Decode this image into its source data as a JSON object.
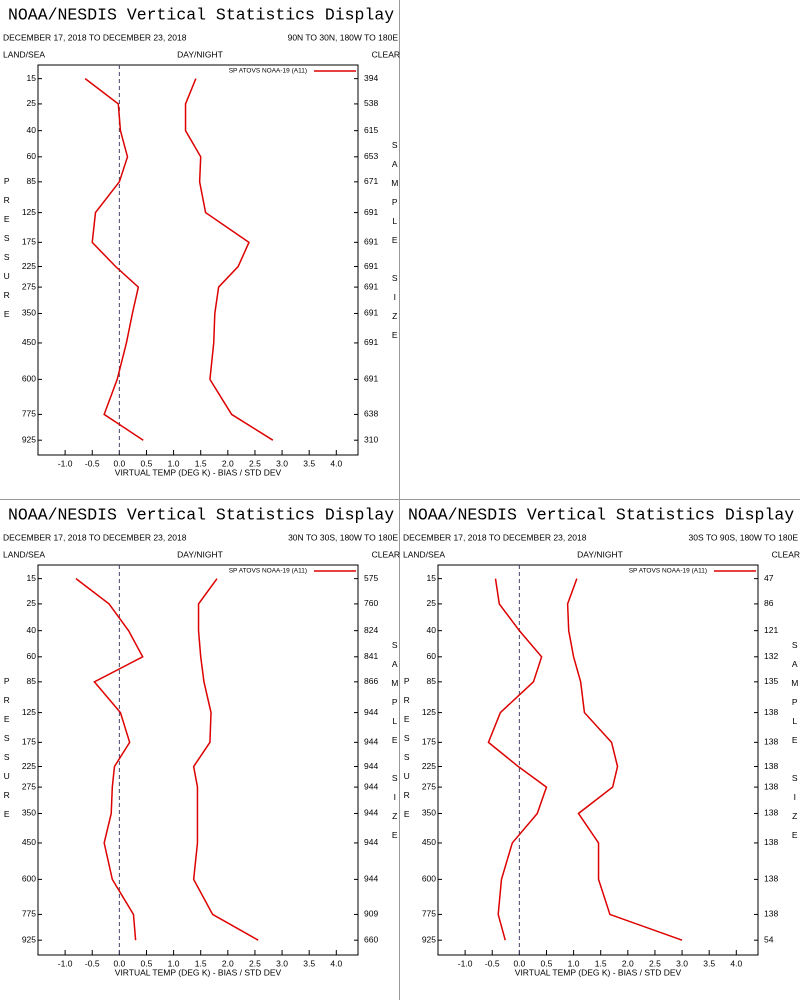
{
  "chart_data": [
    {
      "type": "line",
      "title": "NOAA/NESDIS Vertical Statistics Display",
      "date_range": "DECEMBER 17, 2018 TO DECEMBER 23, 2018",
      "region": "90N TO 30N, 180W TO 180E",
      "corner_labels": [
        "LAND/SEA",
        "DAY/NIGHT",
        "CLEAR"
      ],
      "ylabel": "PRESSURE",
      "y2label": "SAMPLE SIZE",
      "xlabel": "VIRTUAL TEMP (DEG K) - BIAS / STD DEV",
      "y": [
        15,
        25,
        40,
        60,
        85,
        125,
        175,
        225,
        275,
        350,
        450,
        600,
        775,
        925
      ],
      "yticks": [
        15,
        25,
        40,
        60,
        85,
        125,
        175,
        225,
        275,
        350,
        450,
        600,
        775,
        925
      ],
      "ylim": [
        11,
        1020
      ],
      "y_power": 0.286,
      "xlim": [
        -1.5,
        4.4
      ],
      "xticks": [
        {
          "value": -1.0,
          "label": "-1.0"
        },
        -0.5,
        {
          "value": 0.0,
          "label": "0.0"
        },
        0.5,
        {
          "value": 1.0,
          "label": "1.0"
        },
        1.5,
        {
          "value": 2.0,
          "label": "2.0"
        },
        2.5,
        {
          "value": 3.0,
          "label": "3.0"
        },
        3.5,
        {
          "value": 4.0,
          "label": "4.0"
        }
      ],
      "zero_line": true,
      "sample_size": [
        394,
        538,
        615,
        653,
        671,
        691,
        691,
        691,
        691,
        691,
        691,
        691,
        638,
        310
      ],
      "series": [
        {
          "name": "SP ATOVS NOAA-19 (A11)",
          "color": "#dd0000",
          "values": [
            -0.63,
            -0.02,
            0.02,
            0.15,
            0.0,
            -0.44,
            -0.5,
            -0.07,
            0.35,
            0.24,
            0.13,
            -0.04,
            -0.28,
            0.44
          ]
        },
        {
          "color": "#dd0000",
          "values": [
            1.41,
            1.22,
            1.22,
            1.5,
            1.48,
            1.59,
            2.39,
            2.19,
            1.83,
            1.76,
            1.74,
            1.67,
            2.07,
            2.83
          ]
        }
      ]
    },
    {
      "type": "line",
      "title": "NOAA/NESDIS Vertical Statistics Display",
      "date_range": "DECEMBER 17, 2018 TO DECEMBER 23, 2018",
      "region": "30N TO 30S, 180W TO 180E",
      "corner_labels": [
        "LAND/SEA",
        "DAY/NIGHT",
        "CLEAR"
      ],
      "ylabel": "PRESSURE",
      "y2label": "SAMPLE SIZE",
      "xlabel": "VIRTUAL TEMP (DEG K) - BIAS / STD DEV",
      "y": [
        15,
        25,
        40,
        60,
        85,
        125,
        175,
        225,
        275,
        350,
        450,
        600,
        775,
        925
      ],
      "yticks": [
        15,
        25,
        40,
        60,
        85,
        125,
        175,
        225,
        275,
        350,
        450,
        600,
        775,
        925
      ],
      "ylim": [
        11,
        1020
      ],
      "y_power": 0.286,
      "xlim": [
        -1.5,
        4.4
      ],
      "xticks": [
        {
          "value": -1.0,
          "label": "-1.0"
        },
        -0.5,
        {
          "value": 0.0,
          "label": "0.0"
        },
        0.5,
        {
          "value": 1.0,
          "label": "1.0"
        },
        1.5,
        {
          "value": 2.0,
          "label": "2.0"
        },
        2.5,
        {
          "value": 3.0,
          "label": "3.0"
        },
        3.5,
        {
          "value": 4.0,
          "label": "4.0"
        }
      ],
      "zero_line": true,
      "sample_size": [
        575,
        760,
        824,
        841,
        866,
        944,
        944,
        944,
        944,
        944,
        944,
        944,
        909,
        660
      ],
      "series": [
        {
          "name": "SP ATOVS NOAA-19 (A11)",
          "color": "#dd0000",
          "values": [
            -0.8,
            -0.19,
            0.17,
            0.43,
            -0.46,
            0.02,
            0.19,
            -0.09,
            -0.13,
            -0.15,
            -0.28,
            -0.13,
            0.26,
            0.3
          ]
        },
        {
          "color": "#dd0000",
          "values": [
            1.8,
            1.46,
            1.46,
            1.5,
            1.56,
            1.69,
            1.67,
            1.37,
            1.44,
            1.44,
            1.44,
            1.37,
            1.72,
            2.56
          ]
        }
      ]
    },
    {
      "type": "line",
      "title": "NOAA/NESDIS Vertical Statistics Display",
      "date_range": "DECEMBER 17, 2018 TO DECEMBER 23, 2018",
      "region": "30S TO 90S, 180W TO 180E",
      "corner_labels": [
        "LAND/SEA",
        "DAY/NIGHT",
        "CLEAR"
      ],
      "ylabel": "PRESSURE",
      "y2label": "SAMPLE SIZE",
      "xlabel": "VIRTUAL TEMP (DEG K) - BIAS / STD DEV",
      "y": [
        15,
        25,
        40,
        60,
        85,
        125,
        175,
        225,
        275,
        350,
        450,
        600,
        775,
        925
      ],
      "yticks": [
        15,
        25,
        40,
        60,
        85,
        125,
        175,
        225,
        275,
        350,
        450,
        600,
        775,
        925
      ],
      "ylim": [
        11,
        1020
      ],
      "y_power": 0.286,
      "xlim": [
        -1.5,
        4.4
      ],
      "xticks": [
        {
          "value": -1.0,
          "label": "-1.0"
        },
        -0.5,
        {
          "value": 0.0,
          "label": "0.0"
        },
        0.5,
        {
          "value": 1.0,
          "label": "1.0"
        },
        1.5,
        {
          "value": 2.0,
          "label": "2.0"
        },
        2.5,
        {
          "value": 3.0,
          "label": "3.0"
        },
        3.5,
        {
          "value": 4.0,
          "label": "4.0"
        }
      ],
      "zero_line": true,
      "sample_size": [
        47,
        86,
        121,
        132,
        135,
        138,
        138,
        138,
        138,
        138,
        138,
        138,
        138,
        54
      ],
      "series": [
        {
          "name": "SP ATOVS NOAA-19 (A11)",
          "color": "#dd0000",
          "values": [
            -0.44,
            -0.37,
            0.0,
            0.41,
            0.26,
            -0.35,
            -0.57,
            -0.02,
            0.5,
            0.33,
            -0.13,
            -0.33,
            -0.39,
            -0.26
          ]
        },
        {
          "color": "#dd0000",
          "values": [
            1.06,
            0.89,
            0.91,
            1.0,
            1.13,
            1.2,
            1.7,
            1.81,
            1.72,
            1.09,
            1.46,
            1.46,
            1.67,
            3.0
          ]
        }
      ]
    }
  ]
}
